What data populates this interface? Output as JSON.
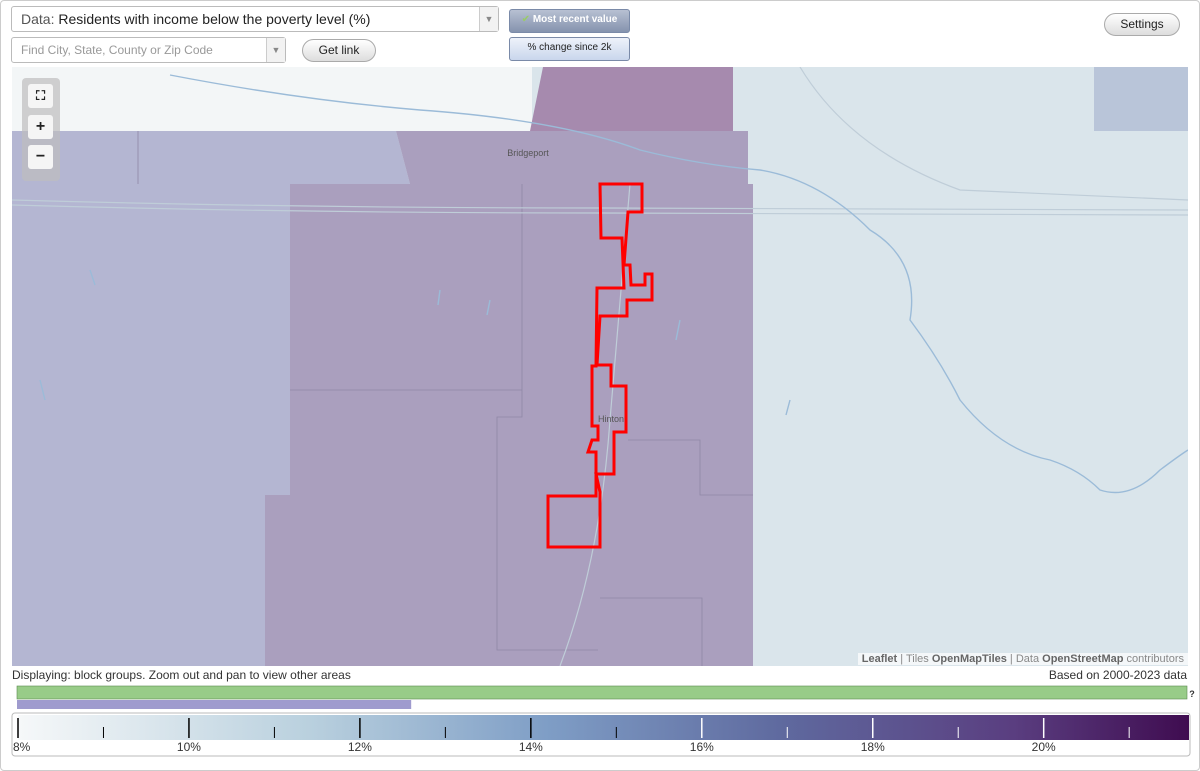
{
  "controls": {
    "data_label": "Data:",
    "data_value": "Residents with income below the poverty level (%)",
    "search_placeholder": "Find City, State, County or Zip Code",
    "get_link": "Get link",
    "most_recent": "Most recent value",
    "change_since": "% change since 2k",
    "settings": "Settings"
  },
  "map": {
    "labels": [
      "Bridgeport",
      "Hinton"
    ],
    "attribution": [
      "Leaflet",
      "|",
      "Tiles",
      "OpenMapTiles",
      "|",
      "Data",
      "OpenStreetMap",
      "contributors"
    ]
  },
  "status": {
    "displaying": "Displaying: block groups. Zoom out and pan to view other areas",
    "based_on": "Based on 2000-2023 data"
  },
  "legend": {
    "help": "?",
    "lim": [
      8,
      21.7
    ],
    "ticks": [
      {
        "value": 8,
        "label": "8%"
      },
      {
        "value": 10,
        "label": "10%"
      },
      {
        "value": 12,
        "label": "12%"
      },
      {
        "value": 14,
        "label": "14%"
      },
      {
        "value": 16,
        "label": "16%"
      },
      {
        "value": 18,
        "label": "18%"
      },
      {
        "value": 20,
        "label": "20%"
      }
    ],
    "minor_ticks": [
      9,
      11,
      13,
      15,
      17,
      19,
      21
    ],
    "value_bar": 12.6
  }
}
